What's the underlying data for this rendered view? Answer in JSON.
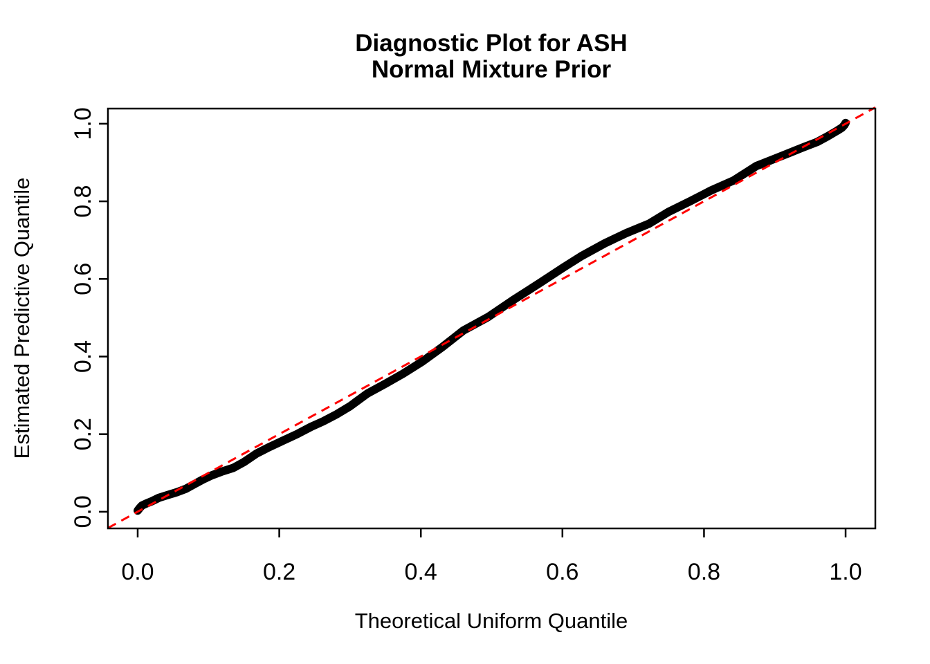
{
  "chart_data": {
    "type": "scatter",
    "title_lines": [
      "Diagnostic Plot for ASH",
      "Normal Mixture Prior"
    ],
    "xlabel": "Theoretical Uniform Quantile",
    "ylabel": "Estimated Predictive Quantile",
    "xlim": [
      -0.042,
      1.042
    ],
    "ylim": [
      -0.043,
      1.039
    ],
    "grid": false,
    "legend": "none",
    "x_ticks": {
      "values": [
        0,
        0.2,
        0.4,
        0.6,
        0.8,
        1.0
      ],
      "labels": [
        "0.0",
        "0.2",
        "0.4",
        "0.6",
        "0.8",
        "1.0"
      ]
    },
    "y_ticks": {
      "values": [
        0,
        0.2,
        0.4,
        0.6,
        0.8,
        1.0
      ],
      "labels": [
        "0.0",
        "0.2",
        "0.4",
        "0.6",
        "0.8",
        "1.0"
      ]
    },
    "colors": {
      "curve": "#000000",
      "reference": "#FF0000",
      "axis": "#000000",
      "background": "#FFFFFF"
    },
    "series": [
      {
        "name": "predictive-quantile-curve",
        "type": "line",
        "color": "#000000",
        "stroke_width": 12,
        "dash": null,
        "points": [
          [
            0.0,
            0.003
          ],
          [
            0.003,
            0.01
          ],
          [
            0.006,
            0.016
          ],
          [
            0.012,
            0.021
          ],
          [
            0.02,
            0.027
          ],
          [
            0.03,
            0.036
          ],
          [
            0.042,
            0.043
          ],
          [
            0.055,
            0.05
          ],
          [
            0.068,
            0.059
          ],
          [
            0.08,
            0.071
          ],
          [
            0.092,
            0.083
          ],
          [
            0.105,
            0.094
          ],
          [
            0.118,
            0.103
          ],
          [
            0.135,
            0.113
          ],
          [
            0.15,
            0.128
          ],
          [
            0.168,
            0.15
          ],
          [
            0.185,
            0.166
          ],
          [
            0.205,
            0.183
          ],
          [
            0.225,
            0.2
          ],
          [
            0.245,
            0.219
          ],
          [
            0.262,
            0.233
          ],
          [
            0.28,
            0.25
          ],
          [
            0.3,
            0.272
          ],
          [
            0.324,
            0.304
          ],
          [
            0.35,
            0.33
          ],
          [
            0.375,
            0.356
          ],
          [
            0.402,
            0.387
          ],
          [
            0.43,
            0.424
          ],
          [
            0.46,
            0.467
          ],
          [
            0.495,
            0.502
          ],
          [
            0.53,
            0.545
          ],
          [
            0.57,
            0.592
          ],
          [
            0.6,
            0.628
          ],
          [
            0.627,
            0.659
          ],
          [
            0.66,
            0.692
          ],
          [
            0.69,
            0.718
          ],
          [
            0.722,
            0.742
          ],
          [
            0.75,
            0.773
          ],
          [
            0.78,
            0.8
          ],
          [
            0.81,
            0.828
          ],
          [
            0.842,
            0.854
          ],
          [
            0.874,
            0.891
          ],
          [
            0.907,
            0.915
          ],
          [
            0.94,
            0.939
          ],
          [
            0.96,
            0.953
          ],
          [
            0.975,
            0.968
          ],
          [
            0.988,
            0.982
          ],
          [
            0.995,
            0.99
          ],
          [
            0.998,
            0.996
          ],
          [
            1.0,
            1.002
          ]
        ]
      },
      {
        "name": "identity-reference-line",
        "type": "line",
        "color": "#FF0000",
        "stroke_width": 3,
        "dash": [
          13,
          9
        ],
        "points": [
          [
            -0.042,
            -0.042
          ],
          [
            1.042,
            1.042
          ]
        ]
      }
    ]
  }
}
